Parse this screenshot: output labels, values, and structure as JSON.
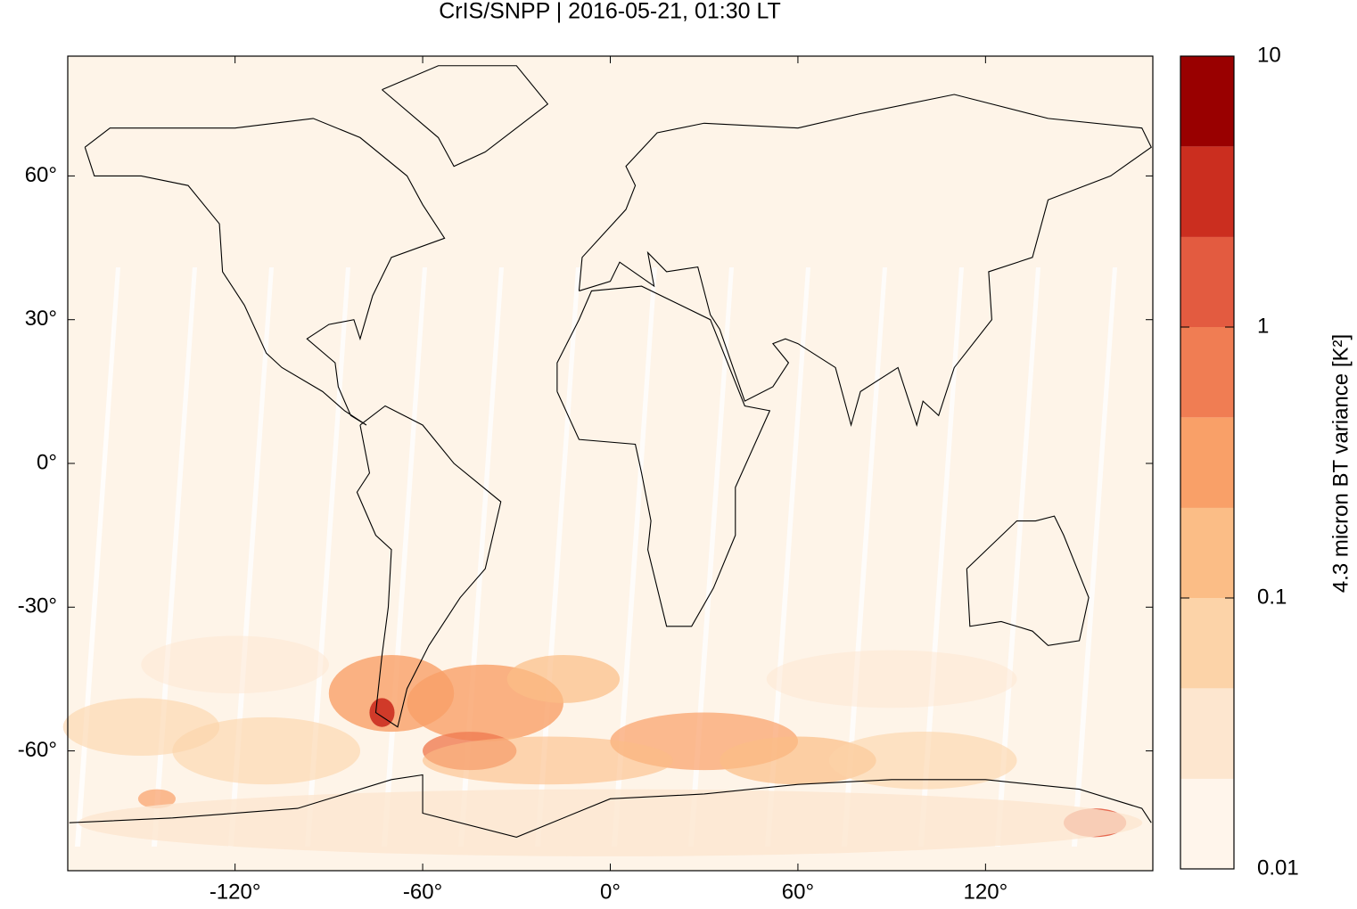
{
  "chart_data": {
    "type": "map",
    "title": "CrIS/SNPP | 2016-05-21, 01:30 LT",
    "xlim": [
      -173.5,
      173.5
    ],
    "ylim": [
      -85,
      85
    ],
    "xticks": [
      {
        "value": -120,
        "label": "-120°"
      },
      {
        "value": -60,
        "label": "-60°"
      },
      {
        "value": 0,
        "label": "0°"
      },
      {
        "value": 60,
        "label": "60°"
      },
      {
        "value": 120,
        "label": "120°"
      }
    ],
    "yticks": [
      {
        "value": -60,
        "label": "-60°"
      },
      {
        "value": -30,
        "label": "-30°"
      },
      {
        "value": 0,
        "label": "0°"
      },
      {
        "value": 30,
        "label": "30°"
      },
      {
        "value": 60,
        "label": "60°"
      }
    ],
    "colorbar": {
      "label": "4.3 micron BT variance [K²]",
      "log_scale": true,
      "lim": [
        0.01,
        10
      ],
      "ticks": [
        0.01,
        0.1,
        1,
        10
      ],
      "levels": [
        0.01,
        0.0215,
        0.0464,
        0.1,
        0.215,
        0.464,
        1,
        2.15,
        4.64,
        10
      ],
      "colors": [
        "#fff5eb",
        "#fde6cf",
        "#fcd3a8",
        "#fbbd86",
        "#f9a068",
        "#f07d53",
        "#e35b40",
        "#cb2e1f",
        "#990000"
      ]
    }
  }
}
